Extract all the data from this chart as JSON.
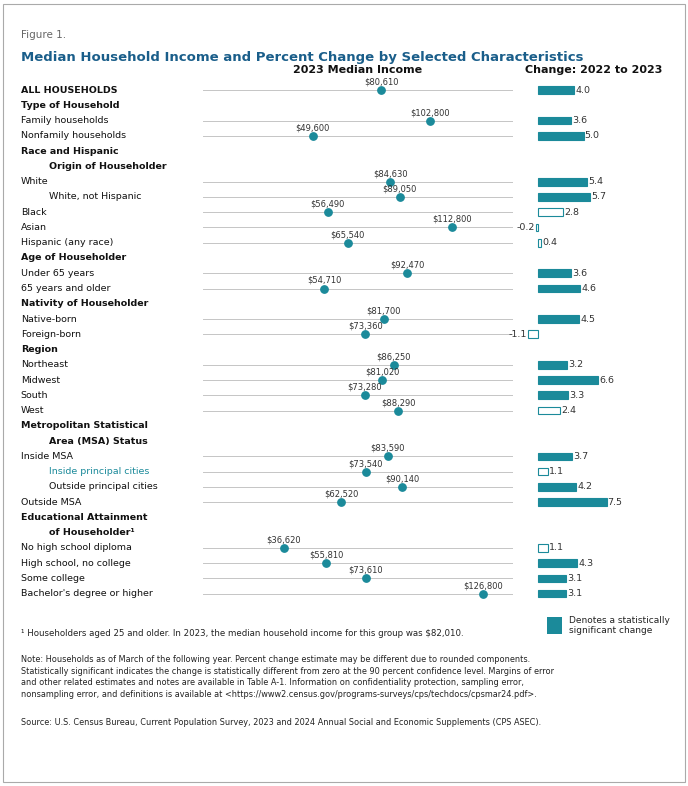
{
  "figure_label": "Figure 1.",
  "title": "Median Household Income and Percent Change by Selected Characteristics",
  "left_header": "2023 Median Income",
  "right_header": "Change: 2022 to 2023",
  "teal_color": "#1b8a9a",
  "rows": [
    {
      "label": "ALL HOUSEHOLDS",
      "bold": true,
      "indent": 0,
      "teal_label": false,
      "income": 80610,
      "income_str": "$80,610",
      "change": 4.0,
      "significant": true,
      "negative": false
    },
    {
      "label": "Type of Household",
      "bold": true,
      "indent": 0,
      "teal_label": false,
      "income": null,
      "income_str": null,
      "change": null,
      "significant": false,
      "negative": false
    },
    {
      "label": "Family households",
      "bold": false,
      "indent": 0,
      "teal_label": false,
      "income": 102800,
      "income_str": "$102,800",
      "change": 3.6,
      "significant": true,
      "negative": false
    },
    {
      "label": "Nonfamily households",
      "bold": false,
      "indent": 0,
      "teal_label": false,
      "income": 49600,
      "income_str": "$49,600",
      "change": 5.0,
      "significant": true,
      "negative": false
    },
    {
      "label": "Race and Hispanic",
      "bold": true,
      "indent": 0,
      "teal_label": false,
      "income": null,
      "income_str": null,
      "change": null,
      "significant": false,
      "negative": false
    },
    {
      "label": "Origin of Householder",
      "bold": true,
      "indent": 2,
      "teal_label": false,
      "income": null,
      "income_str": null,
      "change": null,
      "significant": false,
      "negative": false
    },
    {
      "label": "White",
      "bold": false,
      "indent": 0,
      "teal_label": false,
      "income": 84630,
      "income_str": "$84,630",
      "change": 5.4,
      "significant": true,
      "negative": false
    },
    {
      "label": "White, not Hispanic",
      "bold": false,
      "indent": 2,
      "teal_label": false,
      "income": 89050,
      "income_str": "$89,050",
      "change": 5.7,
      "significant": true,
      "negative": false
    },
    {
      "label": "Black",
      "bold": false,
      "indent": 0,
      "teal_label": false,
      "income": 56490,
      "income_str": "$56,490",
      "change": 2.8,
      "significant": false,
      "negative": false
    },
    {
      "label": "Asian",
      "bold": false,
      "indent": 0,
      "teal_label": false,
      "income": 112800,
      "income_str": "$112,800",
      "change": -0.2,
      "significant": false,
      "negative": true
    },
    {
      "label": "Hispanic (any race)",
      "bold": false,
      "indent": 0,
      "teal_label": false,
      "income": 65540,
      "income_str": "$65,540",
      "change": 0.4,
      "significant": false,
      "negative": false
    },
    {
      "label": "Age of Householder",
      "bold": true,
      "indent": 0,
      "teal_label": false,
      "income": null,
      "income_str": null,
      "change": null,
      "significant": false,
      "negative": false
    },
    {
      "label": "Under 65 years",
      "bold": false,
      "indent": 0,
      "teal_label": false,
      "income": 92470,
      "income_str": "$92,470",
      "change": 3.6,
      "significant": true,
      "negative": false
    },
    {
      "label": "65 years and older",
      "bold": false,
      "indent": 0,
      "teal_label": false,
      "income": 54710,
      "income_str": "$54,710",
      "change": 4.6,
      "significant": true,
      "negative": false
    },
    {
      "label": "Nativity of Householder",
      "bold": true,
      "indent": 0,
      "teal_label": false,
      "income": null,
      "income_str": null,
      "change": null,
      "significant": false,
      "negative": false
    },
    {
      "label": "Native-born",
      "bold": false,
      "indent": 0,
      "teal_label": false,
      "income": 81700,
      "income_str": "$81,700",
      "change": 4.5,
      "significant": true,
      "negative": false
    },
    {
      "label": "Foreign-born",
      "bold": false,
      "indent": 0,
      "teal_label": false,
      "income": 73360,
      "income_str": "$73,360",
      "change": -1.1,
      "significant": false,
      "negative": true
    },
    {
      "label": "Region",
      "bold": true,
      "indent": 0,
      "teal_label": false,
      "income": null,
      "income_str": null,
      "change": null,
      "significant": false,
      "negative": false
    },
    {
      "label": "Northeast",
      "bold": false,
      "indent": 0,
      "teal_label": false,
      "income": 86250,
      "income_str": "$86,250",
      "change": 3.2,
      "significant": true,
      "negative": false
    },
    {
      "label": "Midwest",
      "bold": false,
      "indent": 0,
      "teal_label": false,
      "income": 81020,
      "income_str": "$81,020",
      "change": 6.6,
      "significant": true,
      "negative": false
    },
    {
      "label": "South",
      "bold": false,
      "indent": 0,
      "teal_label": false,
      "income": 73280,
      "income_str": "$73,280",
      "change": 3.3,
      "significant": true,
      "negative": false
    },
    {
      "label": "West",
      "bold": false,
      "indent": 0,
      "teal_label": false,
      "income": 88290,
      "income_str": "$88,290",
      "change": 2.4,
      "significant": false,
      "negative": false
    },
    {
      "label": "Metropolitan Statistical",
      "bold": true,
      "indent": 0,
      "teal_label": false,
      "income": null,
      "income_str": null,
      "change": null,
      "significant": false,
      "negative": false
    },
    {
      "label": "Area (MSA) Status",
      "bold": true,
      "indent": 2,
      "teal_label": false,
      "income": null,
      "income_str": null,
      "change": null,
      "significant": false,
      "negative": false
    },
    {
      "label": "Inside MSA",
      "bold": false,
      "indent": 0,
      "teal_label": false,
      "income": 83590,
      "income_str": "$83,590",
      "change": 3.7,
      "significant": true,
      "negative": false
    },
    {
      "label": "Inside principal cities",
      "bold": false,
      "indent": 2,
      "teal_label": true,
      "income": 73540,
      "income_str": "$73,540",
      "change": 1.1,
      "significant": false,
      "negative": false
    },
    {
      "label": "Outside principal cities",
      "bold": false,
      "indent": 2,
      "teal_label": false,
      "income": 90140,
      "income_str": "$90,140",
      "change": 4.2,
      "significant": true,
      "negative": false
    },
    {
      "label": "Outside MSA",
      "bold": false,
      "indent": 0,
      "teal_label": false,
      "income": 62520,
      "income_str": "$62,520",
      "change": 7.5,
      "significant": true,
      "negative": false
    },
    {
      "label": "Educational Attainment",
      "bold": true,
      "indent": 0,
      "teal_label": false,
      "income": null,
      "income_str": null,
      "change": null,
      "significant": false,
      "negative": false
    },
    {
      "label": "of Householder¹",
      "bold": true,
      "indent": 2,
      "teal_label": false,
      "income": null,
      "income_str": null,
      "change": null,
      "significant": false,
      "negative": false
    },
    {
      "label": "No high school diploma",
      "bold": false,
      "indent": 0,
      "teal_label": false,
      "income": 36620,
      "income_str": "$36,620",
      "change": 1.1,
      "significant": false,
      "negative": false
    },
    {
      "label": "High school, no college",
      "bold": false,
      "indent": 0,
      "teal_label": false,
      "income": 55810,
      "income_str": "$55,810",
      "change": 4.3,
      "significant": true,
      "negative": false
    },
    {
      "label": "Some college",
      "bold": false,
      "indent": 0,
      "teal_label": false,
      "income": 73610,
      "income_str": "$73,610",
      "change": 3.1,
      "significant": true,
      "negative": false
    },
    {
      "label": "Bachelor's degree or higher",
      "bold": false,
      "indent": 0,
      "teal_label": false,
      "income": 126800,
      "income_str": "$126,800",
      "change": 3.1,
      "significant": true,
      "negative": false
    }
  ],
  "income_max": 140000,
  "change_max": 8.5,
  "footnote1": "¹ Householders aged 25 and older. In 2023, the median household income for this group was $82,010.",
  "note_text": "Note: Households as of March of the following year. Percent change estimate may be different due to rounded components.\nStatistically significant indicates the change is statistically different from zero at the 90 percent confidence level. Margins of error\nand other related estimates and notes are available in Table A-1. Information on confidentiality protection, sampling error,\nnonsampling error, and definitions is available at <https://www2.census.gov/programs-surveys/cps/techdocs/cpsmar24.pdf>.",
  "source_text": "Source: U.S. Census Bureau, Current Population Survey, 2023 and 2024 Annual Social and Economic Supplements (CPS ASEC).",
  "legend_text": "Denotes a statistically\nsignificant change"
}
